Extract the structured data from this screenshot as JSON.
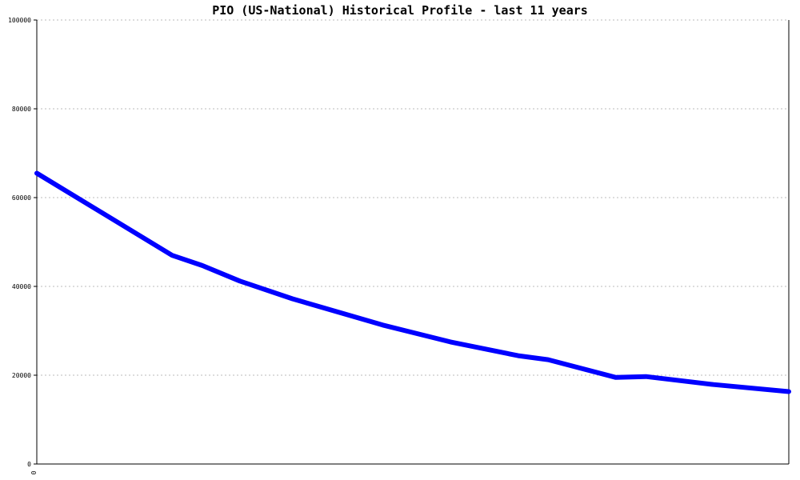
{
  "chart_data": {
    "type": "line",
    "title": "PIO (US-National) Historical Profile - last 11 years",
    "xlabel": "",
    "ylabel": "",
    "ylim": [
      0,
      100000
    ],
    "yticks": [
      "0",
      "20000",
      "40000",
      "60000",
      "80000",
      "100000"
    ],
    "xticks": [
      "0"
    ],
    "grid": true,
    "legend": "none",
    "series": [
      {
        "color": "#0000ff",
        "x": [
          0,
          0.18,
          0.22,
          0.27,
          0.34,
          0.46,
          0.55,
          0.64,
          0.68,
          0.77,
          0.81,
          0.9,
          1.0
        ],
        "y": [
          65500,
          47000,
          44700,
          41200,
          37200,
          31300,
          27500,
          24400,
          23500,
          19500,
          19700,
          17900,
          16300
        ]
      }
    ]
  }
}
